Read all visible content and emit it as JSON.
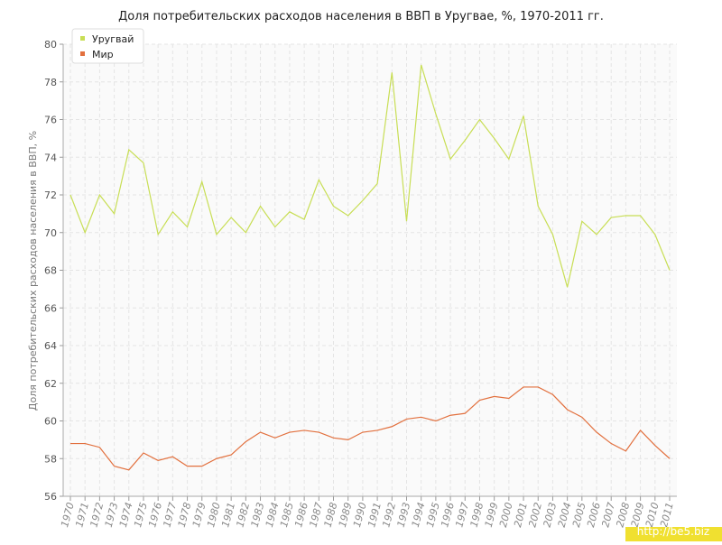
{
  "chart_data": {
    "type": "line",
    "title": "Доля потребительских расходов населения в ВВП в Уругвае, %, 1970-2011 гг.",
    "y_label": "Доля потребительских расходов населения в ВВП, %",
    "categories": [
      "1970",
      "1971",
      "1972",
      "1973",
      "1974",
      "1975",
      "1976",
      "1977",
      "1978",
      "1979",
      "1980",
      "1981",
      "1982",
      "1983",
      "1984",
      "1985",
      "1986",
      "1987",
      "1988",
      "1989",
      "1990",
      "1991",
      "1992",
      "1993",
      "1994",
      "1995",
      "1996",
      "1997",
      "1998",
      "1999",
      "2000",
      "2001",
      "2002",
      "2003",
      "2004",
      "2005",
      "2006",
      "2007",
      "2008",
      "2009",
      "2010",
      "2011"
    ],
    "series": [
      {
        "name": "Уругвай",
        "color": "#c8de55",
        "values": [
          72.0,
          70.0,
          72.0,
          71.0,
          74.4,
          73.7,
          69.9,
          71.1,
          70.3,
          72.7,
          69.9,
          70.8,
          70.0,
          71.4,
          70.3,
          71.1,
          70.7,
          72.8,
          71.4,
          70.9,
          71.7,
          72.6,
          78.5,
          70.6,
          78.9,
          76.3,
          73.9,
          74.9,
          76.0,
          75.0,
          73.9,
          76.2,
          71.4,
          69.9,
          67.1,
          70.6,
          69.9,
          70.8,
          70.9,
          70.9,
          69.9,
          68.0
        ]
      },
      {
        "name": "Мир",
        "color": "#e2703e",
        "values": [
          58.8,
          58.8,
          58.6,
          57.6,
          57.4,
          58.3,
          57.9,
          58.1,
          57.6,
          57.6,
          58.0,
          58.2,
          58.9,
          59.4,
          59.1,
          59.4,
          59.5,
          59.4,
          59.1,
          59.0,
          59.4,
          59.5,
          59.7,
          60.1,
          60.2,
          60.0,
          60.3,
          60.4,
          61.1,
          61.3,
          61.2,
          61.8,
          61.8,
          61.4,
          60.6,
          60.2,
          59.4,
          58.8,
          58.4,
          59.5,
          58.7,
          58.0
        ]
      }
    ],
    "ylim": [
      56,
      80
    ],
    "yticks": [
      56,
      58,
      60,
      62,
      64,
      66,
      68,
      70,
      72,
      74,
      76,
      78,
      80
    ],
    "grid": true,
    "watermark": "http://be5.biz"
  }
}
